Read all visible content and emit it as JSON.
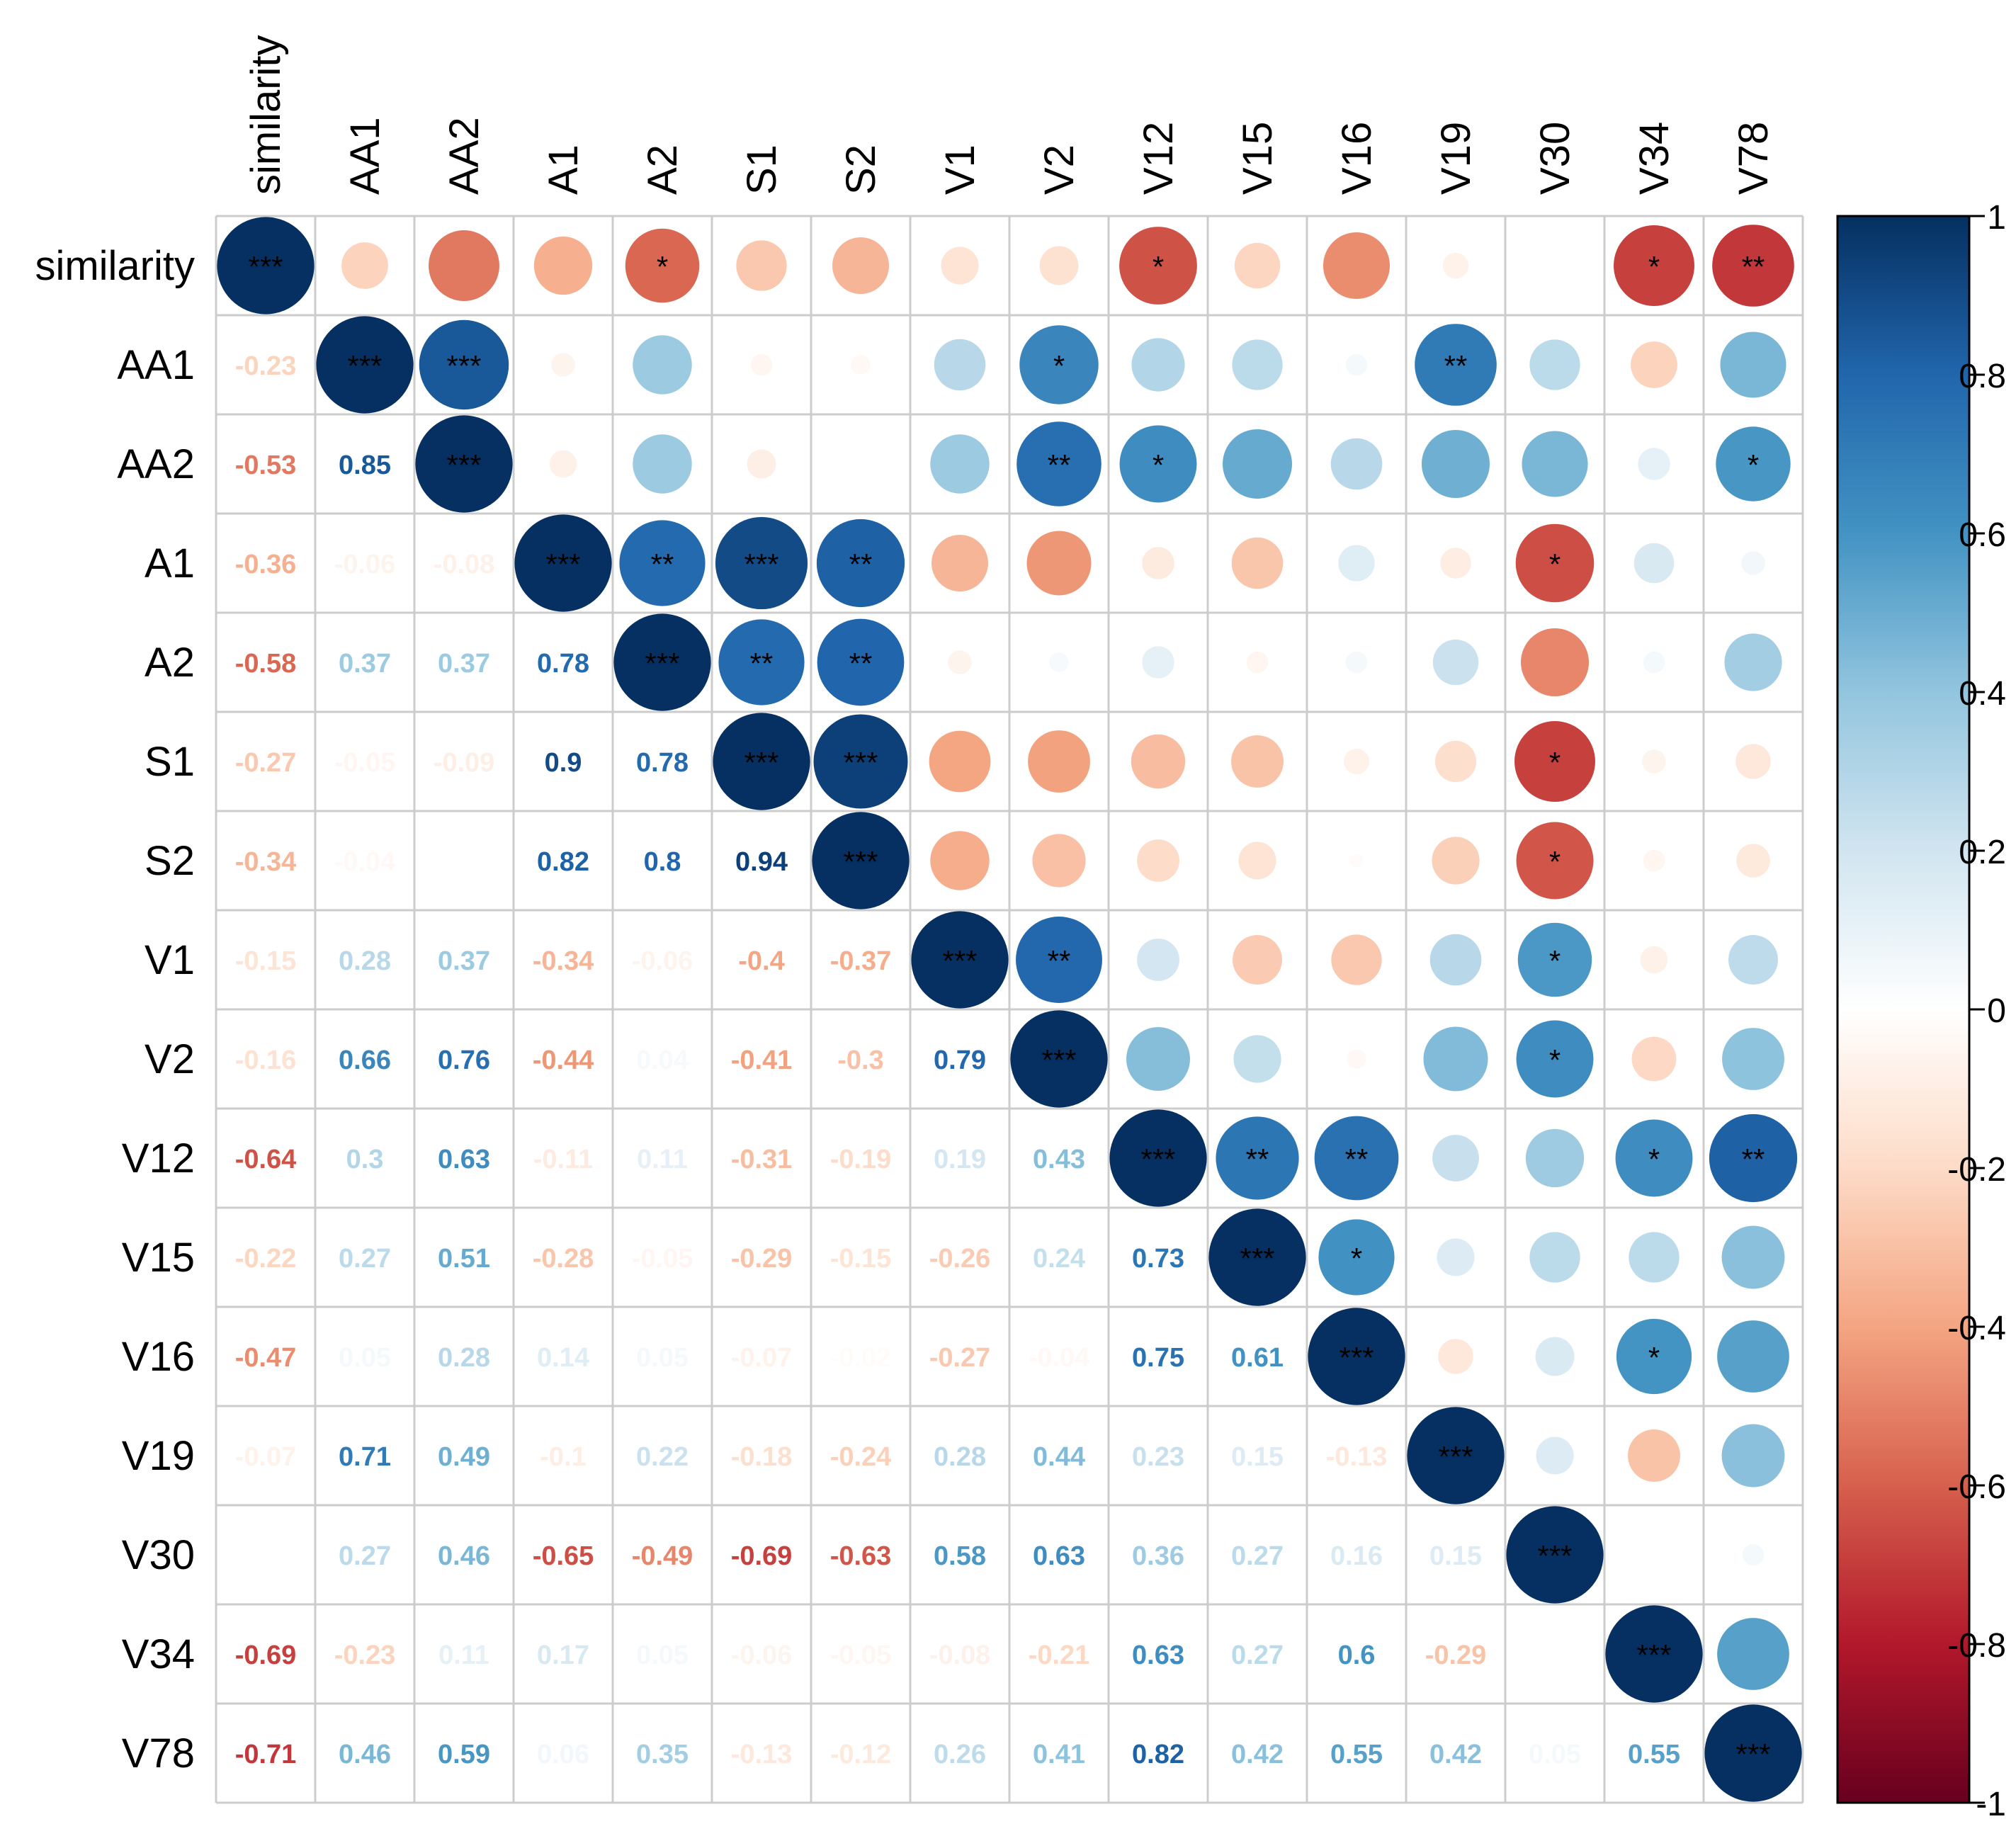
{
  "chart_data": {
    "type": "heatmap",
    "subtype": "correlation-matrix-mixed",
    "title": "",
    "upper": "circle",
    "lower": "number",
    "variables": [
      "similarity",
      "AA1",
      "AA2",
      "A1",
      "A2",
      "S1",
      "S2",
      "V1",
      "V2",
      "V12",
      "V15",
      "V16",
      "V19",
      "V30",
      "V34",
      "V78"
    ],
    "matrix": [
      [
        1,
        -0.23,
        -0.53,
        -0.36,
        -0.58,
        -0.27,
        -0.34,
        -0.15,
        -0.16,
        -0.64,
        -0.22,
        -0.47,
        -0.07,
        0.0,
        -0.69,
        -0.71
      ],
      [
        -0.23,
        1,
        0.85,
        -0.06,
        0.37,
        -0.05,
        -0.04,
        0.28,
        0.66,
        0.3,
        0.27,
        0.05,
        0.71,
        0.27,
        -0.23,
        0.46
      ],
      [
        -0.53,
        0.85,
        1,
        -0.08,
        0.37,
        -0.09,
        0.0,
        0.37,
        0.76,
        0.63,
        0.51,
        0.28,
        0.49,
        0.46,
        0.11,
        0.59
      ],
      [
        -0.36,
        -0.06,
        -0.08,
        1,
        0.78,
        0.9,
        0.82,
        -0.34,
        -0.44,
        -0.11,
        -0.28,
        0.14,
        -0.1,
        -0.65,
        0.17,
        0.06
      ],
      [
        -0.58,
        0.37,
        0.37,
        0.78,
        1,
        0.78,
        0.8,
        -0.06,
        0.04,
        0.11,
        -0.05,
        0.05,
        0.22,
        -0.49,
        0.05,
        0.35
      ],
      [
        -0.27,
        -0.05,
        -0.09,
        0.9,
        0.78,
        1,
        0.94,
        -0.4,
        -0.41,
        -0.31,
        -0.29,
        -0.07,
        -0.18,
        -0.69,
        -0.06,
        -0.13
      ],
      [
        -0.34,
        -0.04,
        0.0,
        0.82,
        0.8,
        0.94,
        1,
        -0.37,
        -0.3,
        -0.19,
        -0.15,
        -0.02,
        -0.24,
        -0.63,
        -0.05,
        -0.12
      ],
      [
        -0.15,
        0.28,
        0.37,
        -0.34,
        -0.06,
        -0.4,
        -0.37,
        1,
        0.79,
        0.19,
        -0.26,
        -0.27,
        0.28,
        0.58,
        -0.08,
        0.26
      ],
      [
        -0.16,
        0.66,
        0.76,
        -0.44,
        0.04,
        -0.41,
        -0.3,
        0.79,
        1,
        0.43,
        0.24,
        -0.04,
        0.44,
        0.63,
        -0.21,
        0.41
      ],
      [
        -0.64,
        0.3,
        0.63,
        -0.11,
        0.11,
        -0.31,
        -0.19,
        0.19,
        0.43,
        1,
        0.73,
        0.75,
        0.23,
        0.36,
        0.63,
        0.82
      ],
      [
        -0.22,
        0.27,
        0.51,
        -0.28,
        -0.05,
        -0.29,
        -0.15,
        -0.26,
        0.24,
        0.73,
        1,
        0.61,
        0.15,
        0.27,
        0.27,
        0.42
      ],
      [
        -0.47,
        0.05,
        0.28,
        0.14,
        0.05,
        -0.07,
        -0.02,
        -0.27,
        -0.04,
        0.75,
        0.61,
        1,
        -0.13,
        0.16,
        0.6,
        0.55
      ],
      [
        -0.07,
        0.71,
        0.49,
        -0.1,
        0.22,
        -0.18,
        -0.24,
        0.28,
        0.44,
        0.23,
        0.15,
        -0.13,
        1,
        0.15,
        -0.29,
        0.42
      ],
      [
        0.0,
        0.27,
        0.46,
        -0.65,
        -0.49,
        -0.69,
        -0.63,
        0.58,
        0.63,
        0.36,
        0.27,
        0.16,
        0.15,
        1,
        0.0,
        0.05
      ],
      [
        -0.69,
        -0.23,
        0.11,
        0.17,
        0.05,
        -0.06,
        -0.05,
        -0.08,
        -0.21,
        0.63,
        0.27,
        0.6,
        -0.29,
        0.0,
        1,
        0.55
      ],
      [
        -0.71,
        0.46,
        0.59,
        0.06,
        0.35,
        -0.13,
        -0.12,
        0.26,
        0.41,
        0.82,
        0.42,
        0.55,
        0.42,
        0.05,
        0.55,
        1
      ]
    ],
    "lower_text": [
      [],
      [
        "-0.23"
      ],
      [
        "-0.53",
        "0.85"
      ],
      [
        "-0.36",
        "-0.06",
        "-0.08"
      ],
      [
        "-0.58",
        "0.37",
        "0.37",
        "0.78"
      ],
      [
        "-0.27",
        "-0.05",
        "-0.09",
        "0.9",
        "0.78"
      ],
      [
        "-0.34",
        "-0.04",
        "",
        "0.82",
        "0.8",
        "0.94"
      ],
      [
        "-0.15",
        "0.28",
        "0.37",
        "-0.34",
        "-0.06",
        "-0.4",
        "-0.37"
      ],
      [
        "-0.16",
        "0.66",
        "0.76",
        "-0.44",
        "0.04",
        "-0.41",
        "-0.3",
        "0.79"
      ],
      [
        "-0.64",
        "0.3",
        "0.63",
        "-0.11",
        "0.11",
        "-0.31",
        "-0.19",
        "0.19",
        "0.43"
      ],
      [
        "-0.22",
        "0.27",
        "0.51",
        "-0.28",
        "-0.05",
        "-0.29",
        "-0.15",
        "-0.26",
        "0.24",
        "0.73"
      ],
      [
        "-0.47",
        "0.05",
        "0.28",
        "0.14",
        "0.05",
        "-0.07",
        "-0.02",
        "-0.27",
        "-0.04",
        "0.75",
        "0.61"
      ],
      [
        "-0.07",
        "0.71",
        "0.49",
        "-0.1",
        "0.22",
        "-0.18",
        "-0.24",
        "0.28",
        "0.44",
        "0.23",
        "0.15",
        "-0.13"
      ],
      [
        "",
        "0.27",
        "0.46",
        "-0.65",
        "-0.49",
        "-0.69",
        "-0.63",
        "0.58",
        "0.63",
        "0.36",
        "0.27",
        "0.16",
        "0.15"
      ],
      [
        "-0.69",
        "-0.23",
        "0.11",
        "0.17",
        "0.05",
        "-0.06",
        "-0.05",
        "-0.08",
        "-0.21",
        "0.63",
        "0.27",
        "0.6",
        "-0.29",
        ""
      ],
      [
        "-0.71",
        "0.46",
        "0.59",
        "0.06",
        "0.35",
        "-0.13",
        "-0.12",
        "0.26",
        "0.41",
        "0.82",
        "0.42",
        "0.55",
        "0.42",
        "0.05",
        "0.55"
      ]
    ],
    "significance": [
      [
        "***",
        "",
        "",
        "",
        "*",
        "",
        "",
        "",
        "",
        "*",
        "",
        "",
        "",
        "",
        "*",
        "**"
      ],
      [
        "",
        "***",
        "***",
        "",
        "",
        "",
        "",
        "",
        "*",
        "",
        "",
        "",
        "**",
        "",
        "",
        ""
      ],
      [
        "",
        "",
        "***",
        "",
        "",
        "",
        "",
        "",
        "**",
        "*",
        "",
        "",
        "",
        "",
        "",
        "*"
      ],
      [
        "",
        "",
        "",
        "***",
        "**",
        "***",
        "**",
        "",
        "",
        "",
        "",
        "",
        "",
        "*",
        "",
        ""
      ],
      [
        "",
        "",
        "",
        "",
        "***",
        "**",
        "**",
        "",
        "",
        "",
        "",
        "",
        "",
        "",
        "",
        ""
      ],
      [
        "",
        "",
        "",
        "",
        "",
        "***",
        "***",
        "",
        "",
        "",
        "",
        "",
        "",
        "*",
        "",
        ""
      ],
      [
        "",
        "",
        "",
        "",
        "",
        "",
        "***",
        "",
        "",
        "",
        "",
        "",
        "",
        "*",
        "",
        ""
      ],
      [
        "",
        "",
        "",
        "",
        "",
        "",
        "",
        "***",
        "**",
        "",
        "",
        "",
        "",
        "*",
        "",
        ""
      ],
      [
        "",
        "",
        "",
        "",
        "",
        "",
        "",
        "",
        "***",
        "",
        "",
        "",
        "",
        "*",
        "",
        ""
      ],
      [
        "",
        "",
        "",
        "",
        "",
        "",
        "",
        "",
        "",
        "***",
        "**",
        "**",
        "",
        "",
        "*",
        "**"
      ],
      [
        "",
        "",
        "",
        "",
        "",
        "",
        "",
        "",
        "",
        "",
        "***",
        "*",
        "",
        "",
        "",
        ""
      ],
      [
        "",
        "",
        "",
        "",
        "",
        "",
        "",
        "",
        "",
        "",
        "",
        "***",
        "",
        "",
        "*",
        ""
      ],
      [
        "",
        "",
        "",
        "",
        "",
        "",
        "",
        "",
        "",
        "",
        "",
        "",
        "***",
        "",
        "",
        ""
      ],
      [
        "",
        "",
        "",
        "",
        "",
        "",
        "",
        "",
        "",
        "",
        "",
        "",
        "",
        "***",
        "",
        ""
      ],
      [
        "",
        "",
        "",
        "",
        "",
        "",
        "",
        "",
        "",
        "",
        "",
        "",
        "",
        "",
        "***",
        ""
      ],
      [
        "",
        "",
        "",
        "",
        "",
        "",
        "",
        "",
        "",
        "",
        "",
        "",
        "",
        "",
        "",
        "***"
      ]
    ],
    "colorbar": {
      "range": [
        -1,
        1
      ],
      "ticks": [
        1,
        0.8,
        0.6,
        0.4,
        0.2,
        0,
        -0.2,
        -0.4,
        -0.6,
        -0.8,
        -1
      ],
      "tick_labels": [
        "1",
        "0.8",
        "0.6",
        "0.4",
        "0.2",
        "0",
        "-0.2",
        "-0.4",
        "-0.6",
        "-0.8",
        "-1"
      ]
    },
    "colors": {
      "palette": [
        "#67001f",
        "#b2182b",
        "#d6604d",
        "#f4a582",
        "#fddbc7",
        "#ffffff",
        "#d1e5f0",
        "#92c5de",
        "#4393c3",
        "#2166ac",
        "#053061"
      ],
      "grid": "#cccccc"
    }
  }
}
